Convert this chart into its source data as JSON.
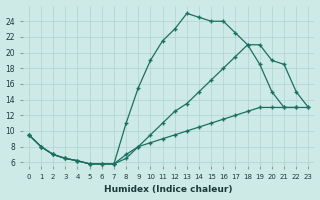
{
  "xlabel": "Humidex (Indice chaleur)",
  "bg_color": "#ceeae7",
  "grid_color": "#aed4d0",
  "line_color": "#1a7060",
  "curve1_x": [
    0,
    1,
    2,
    3,
    4,
    5,
    6,
    7,
    8,
    9,
    10,
    11,
    12,
    13,
    14,
    15,
    16,
    17,
    18,
    19,
    20,
    21,
    22
  ],
  "curve1_y": [
    9.5,
    8.0,
    7.0,
    6.5,
    6.2,
    5.8,
    5.8,
    5.8,
    11.0,
    15.5,
    19.0,
    21.5,
    23.0,
    25.0,
    24.5,
    24.0,
    24.0,
    22.5,
    21.0,
    18.5,
    15.0,
    13.0,
    13.0
  ],
  "curve2_x": [
    0,
    1,
    2,
    3,
    4,
    5,
    6,
    7,
    8,
    9,
    10,
    11,
    12,
    13,
    14,
    15,
    16,
    17,
    18,
    19,
    20,
    21,
    22,
    23
  ],
  "curve2_y": [
    9.5,
    8.0,
    7.0,
    6.5,
    6.2,
    5.8,
    5.8,
    5.8,
    6.5,
    8.0,
    9.5,
    11.0,
    12.5,
    13.5,
    15.0,
    16.5,
    18.0,
    19.5,
    21.0,
    21.0,
    19.0,
    18.5,
    15.0,
    13.0
  ],
  "curve3_x": [
    0,
    1,
    2,
    3,
    4,
    5,
    6,
    7,
    8,
    9,
    10,
    11,
    12,
    13,
    14,
    15,
    16,
    17,
    18,
    19,
    20,
    21,
    22,
    23
  ],
  "curve3_y": [
    9.5,
    8.0,
    7.0,
    6.5,
    6.2,
    5.8,
    5.8,
    5.8,
    7.0,
    8.0,
    8.5,
    9.0,
    9.5,
    10.0,
    10.5,
    11.0,
    11.5,
    12.0,
    12.5,
    13.0,
    13.0,
    13.0,
    13.0,
    13.0
  ],
  "xlim": [
    -0.5,
    23.5
  ],
  "ylim": [
    5.5,
    26.0
  ],
  "yticks": [
    6,
    8,
    10,
    12,
    14,
    16,
    18,
    20,
    22,
    24
  ],
  "xticks": [
    0,
    1,
    2,
    3,
    4,
    5,
    6,
    7,
    8,
    9,
    10,
    11,
    12,
    13,
    14,
    15,
    16,
    17,
    18,
    19,
    20,
    21,
    22,
    23
  ]
}
